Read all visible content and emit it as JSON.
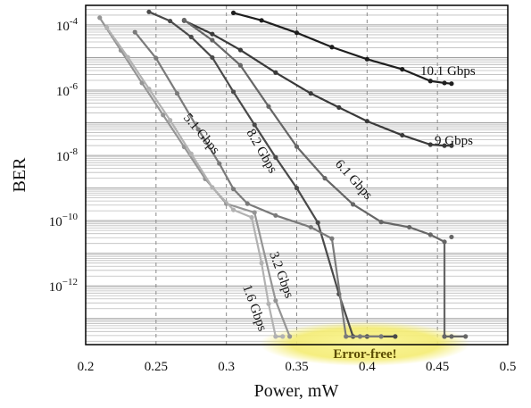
{
  "chart_data": {
    "type": "line",
    "xlabel": "Power, mW",
    "ylabel": "BER",
    "xlim": [
      0.2,
      0.5
    ],
    "ylim_log10": [
      -13.8,
      -3.4
    ],
    "y_scale": "log",
    "grid": "dashed vertical major, solid horizontal minor",
    "x_ticks": [
      "0.2",
      "0.25",
      "0.3",
      "0.35",
      "0.4",
      "0.45",
      "0.5"
    ],
    "y_ticks": [
      {
        "base": "10",
        "exp": "-4",
        "log": -4
      },
      {
        "base": "10",
        "exp": "-6",
        "log": -6
      },
      {
        "base": "10",
        "exp": "-8",
        "log": -8
      },
      {
        "base": "10",
        "exp": "−10",
        "log": -10
      },
      {
        "base": "10",
        "exp": "−12",
        "log": -12
      }
    ],
    "annotation": "Error-free!",
    "series": [
      {
        "name": "10.1 Gbps",
        "color": "#1e1e1e",
        "points": [
          [
            0.305,
            -3.63
          ],
          [
            0.325,
            -3.86
          ],
          [
            0.35,
            -4.24
          ],
          [
            0.375,
            -4.68
          ],
          [
            0.4,
            -5.05
          ],
          [
            0.425,
            -5.36
          ],
          [
            0.445,
            -5.72
          ],
          [
            0.455,
            -5.78
          ],
          [
            0.46,
            -5.8
          ]
        ]
      },
      {
        "name": "9 Gbps",
        "color": "#3a3a3a",
        "points": [
          [
            0.27,
            -3.87
          ],
          [
            0.29,
            -4.28
          ],
          [
            0.31,
            -4.77
          ],
          [
            0.335,
            -5.46
          ],
          [
            0.36,
            -6.1
          ],
          [
            0.38,
            -6.53
          ],
          [
            0.4,
            -6.95
          ],
          [
            0.425,
            -7.38
          ],
          [
            0.445,
            -7.67
          ],
          [
            0.455,
            -7.7
          ],
          [
            0.46,
            -7.7
          ]
        ]
      },
      {
        "name": "8.2 Gbps",
        "color": "#4a4a4a",
        "points": [
          [
            0.245,
            -3.6
          ],
          [
            0.26,
            -3.88
          ],
          [
            0.275,
            -4.37
          ],
          [
            0.29,
            -5.0
          ],
          [
            0.305,
            -6.05
          ],
          [
            0.32,
            -7.06
          ],
          [
            0.335,
            -8.06
          ],
          [
            0.35,
            -9.0
          ],
          [
            0.365,
            -10.06
          ],
          [
            0.38,
            -12.25
          ],
          [
            0.39,
            -13.55
          ],
          [
            0.4,
            -13.55
          ],
          [
            0.42,
            -13.55
          ]
        ]
      },
      {
        "name": "6.1 Gbps",
        "color": "#666666",
        "points": [
          [
            0.27,
            -3.85
          ],
          [
            0.29,
            -4.47
          ],
          [
            0.31,
            -5.24
          ],
          [
            0.33,
            -6.5
          ],
          [
            0.35,
            -7.73
          ],
          [
            0.37,
            -8.7
          ],
          [
            0.39,
            -9.5
          ],
          [
            0.41,
            -10.04
          ],
          [
            0.43,
            -10.2
          ],
          [
            0.445,
            -10.43
          ],
          [
            0.455,
            -10.65
          ],
          [
            0.455,
            -13.55
          ],
          [
            0.46,
            -13.55
          ],
          [
            0.47,
            -13.55
          ]
        ]
      },
      {
        "name": "5.1 Gbps",
        "color": "#7a7a7a",
        "points": [
          [
            0.235,
            -4.22
          ],
          [
            0.25,
            -5.02
          ],
          [
            0.265,
            -6.1
          ],
          [
            0.28,
            -7.2
          ],
          [
            0.295,
            -8.25
          ],
          [
            0.305,
            -9.03
          ],
          [
            0.315,
            -9.48
          ],
          [
            0.335,
            -9.84
          ],
          [
            0.36,
            -10.2
          ],
          [
            0.375,
            -10.55
          ],
          [
            0.385,
            -13.55
          ],
          [
            0.395,
            -13.55
          ],
          [
            0.41,
            -13.55
          ]
        ]
      },
      {
        "name": "3.2 Gbps",
        "color": "#959595",
        "points": [
          [
            0.21,
            -3.78
          ],
          [
            0.225,
            -4.78
          ],
          [
            0.24,
            -5.78
          ],
          [
            0.255,
            -6.76
          ],
          [
            0.27,
            -7.74
          ],
          [
            0.285,
            -8.72
          ],
          [
            0.3,
            -9.48
          ],
          [
            0.32,
            -9.75
          ],
          [
            0.335,
            -12.45
          ],
          [
            0.345,
            -13.55
          ]
        ]
      },
      {
        "name": "1.6 Gbps",
        "color": "#b2b2b2",
        "points": [
          [
            0.215,
            -4.08
          ],
          [
            0.23,
            -4.99
          ],
          [
            0.245,
            -5.96
          ],
          [
            0.26,
            -6.92
          ],
          [
            0.275,
            -7.95
          ],
          [
            0.29,
            -8.98
          ],
          [
            0.305,
            -9.67
          ],
          [
            0.318,
            -9.9
          ],
          [
            0.325,
            -11.3
          ],
          [
            0.33,
            -12.55
          ],
          [
            0.335,
            -13.55
          ],
          [
            0.34,
            -13.55
          ]
        ]
      }
    ],
    "special_points": [
      {
        "series": "6.1 Gbps",
        "x": 0.46,
        "y": -10.5
      },
      {
        "series": "6.1 Gbps",
        "x": 0.455,
        "y": -13.55
      }
    ]
  }
}
